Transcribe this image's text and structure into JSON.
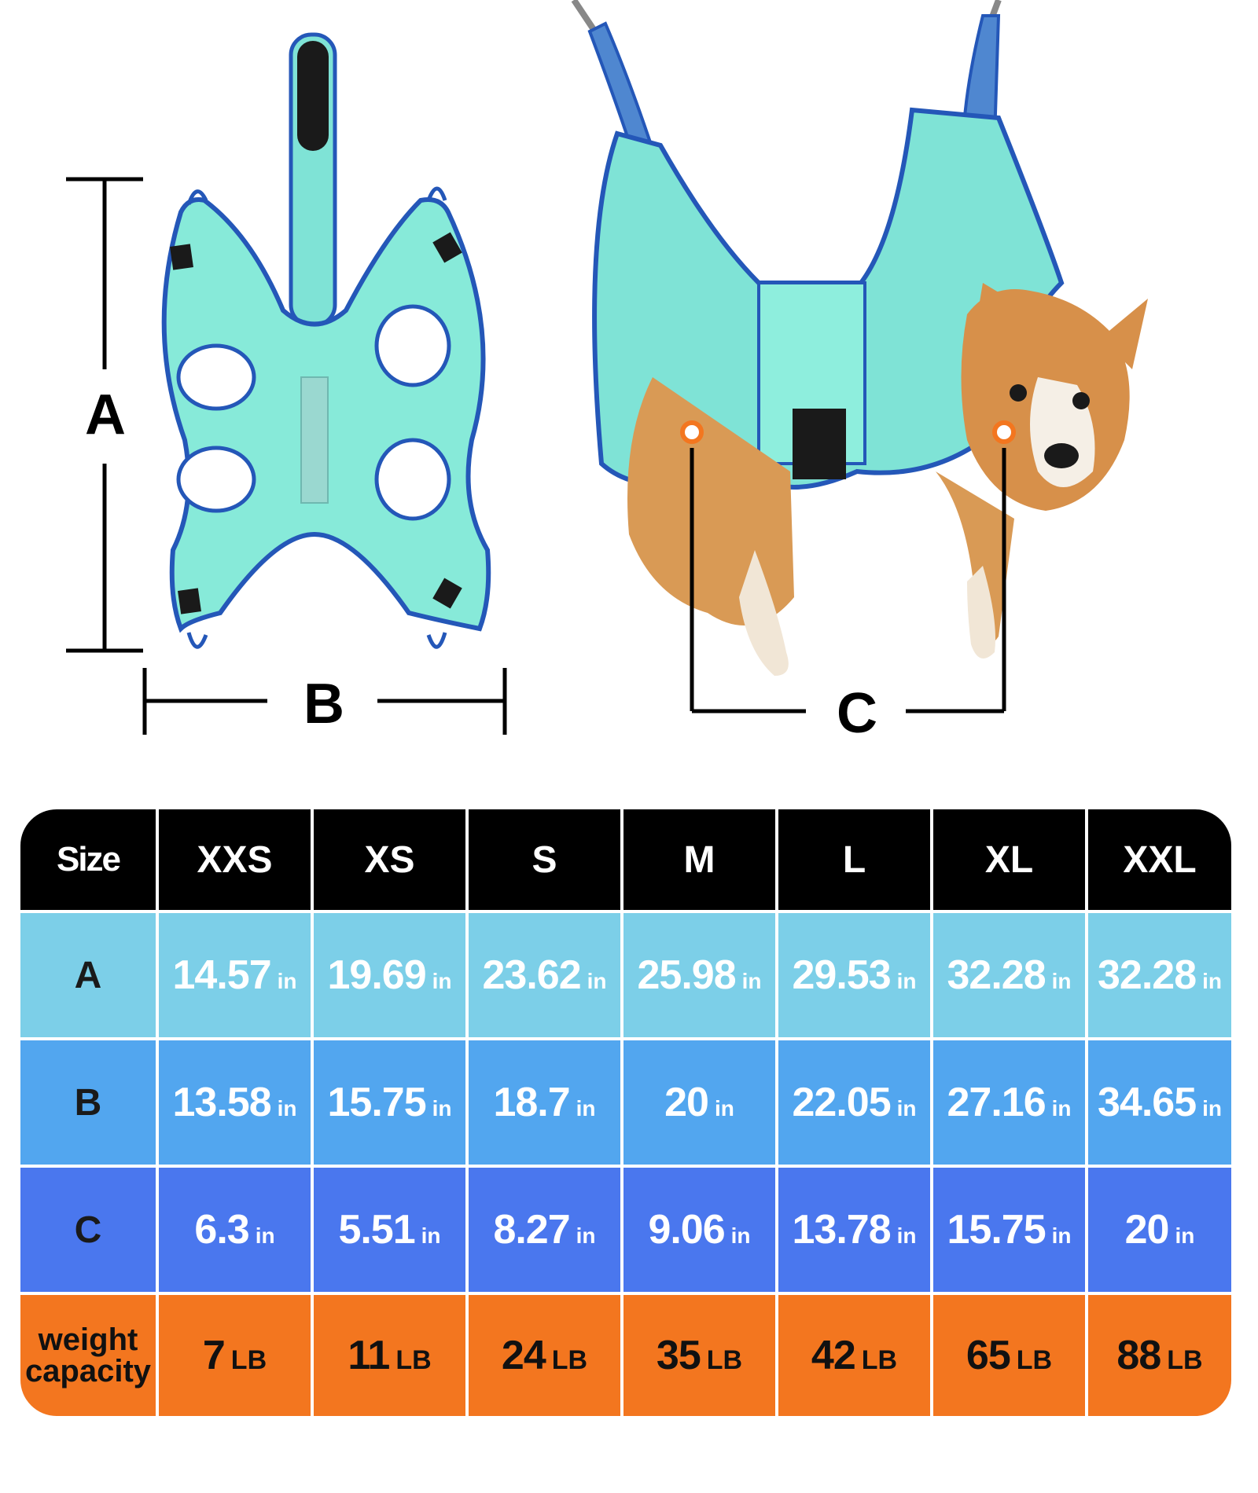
{
  "diagram": {
    "label_a": "A",
    "label_b": "B",
    "label_c": "C"
  },
  "colors": {
    "header": "#000000",
    "row_a": "#7ccfe8",
    "row_b": "#52a6ef",
    "row_c": "#4a77ee",
    "row_weight": "#f3761f",
    "hammock_fabric": "#7fe3d6",
    "hammock_trim": "#2457b8"
  },
  "table": {
    "header_label": "Size",
    "sizes": [
      "XXS",
      "XS",
      "S",
      "M",
      "L",
      "XL",
      "XXL"
    ],
    "rows": [
      {
        "label": "A",
        "unit": "in",
        "values": [
          "14.57",
          "19.69",
          "23.62",
          "25.98",
          "29.53",
          "32.28",
          "32.28"
        ]
      },
      {
        "label": "B",
        "unit": "in",
        "values": [
          "13.58",
          "15.75",
          "18.7",
          "20",
          "22.05",
          "27.16",
          "34.65"
        ]
      },
      {
        "label": "C",
        "unit": "in",
        "values": [
          "6.3",
          "5.51",
          "8.27",
          "9.06",
          "13.78",
          "15.75",
          "20"
        ]
      }
    ],
    "weight": {
      "label_line1": "weight",
      "label_line2": "capacity",
      "unit": "LB",
      "values": [
        "7",
        "11",
        "24",
        "35",
        "42",
        "65",
        "88"
      ]
    }
  }
}
